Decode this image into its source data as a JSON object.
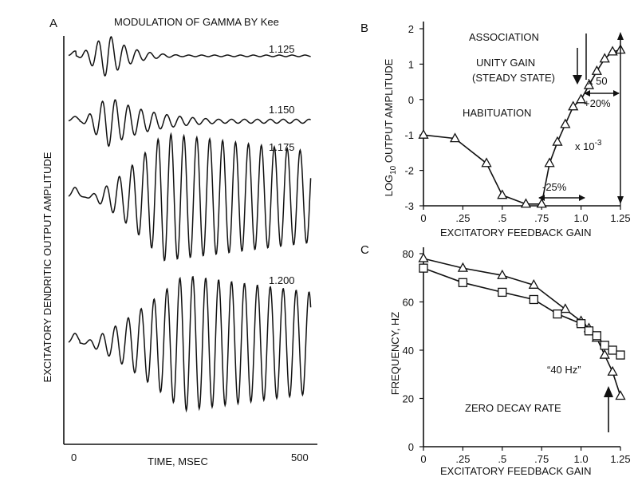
{
  "colors": {
    "ink": "#111111",
    "background": "#ffffff"
  },
  "panelA": {
    "panel_label": "A",
    "title": "MODULATION OF GAMMA BY Kee",
    "ylabel": "EXCITATORY DENDRITIC OUTPUT AMPLITUDE",
    "xlabel": "TIME, MSEC",
    "x_tick_start": "0",
    "x_tick_end": "500",
    "traces": [
      {
        "label": "1.125"
      },
      {
        "label": "1.150"
      },
      {
        "label": "1.175"
      },
      {
        "label": "1.200"
      }
    ]
  },
  "panelB": {
    "panel_label": "B",
    "annotations": {
      "association": "ASSOCIATION",
      "unity1": "UNITY GAIN",
      "unity2": "(STEADY STATE)",
      "habituation": "HABITUATION",
      "x50": "x 50",
      "plus20": "+20%",
      "minus25": "-25%",
      "x10_base": "x 10",
      "x10_exp": "-3"
    }
  },
  "panelC": {
    "panel_label": "C",
    "annotations": {
      "forty": "“40 Hz”",
      "zero_decay": "ZERO DECAY RATE"
    }
  },
  "chart_data": [
    {
      "type": "line",
      "panel": "A",
      "title": "MODULATION OF GAMMA BY Kee",
      "xlabel": "TIME, MSEC",
      "ylabel": "EXCITATORY DENDRITIC OUTPUT AMPLITUDE",
      "xlim": [
        0,
        500
      ],
      "x_ticks": [
        "0",
        "500"
      ],
      "series": [
        {
          "name": "1.125",
          "description": "brief burst of oscillation decaying to baseline"
        },
        {
          "name": "1.150",
          "description": "burst decaying slowly, small residual oscillation"
        },
        {
          "name": "1.175",
          "description": "large sustained oscillation, slowly declining"
        },
        {
          "name": "1.200",
          "description": "large sustained oscillation, growing"
        }
      ]
    },
    {
      "type": "line",
      "panel": "B",
      "xlabel": "EXCITATORY FEEDBACK GAIN",
      "ylabel": "LOG10 OUTPUT AMPLITUDE",
      "xlim": [
        0,
        1.25
      ],
      "ylim": [
        -3,
        2
      ],
      "x_ticks": [
        "0",
        ".25",
        ".5",
        ".75",
        "1.0",
        "1.25"
      ],
      "y_ticks": [
        "-3",
        "-2",
        "-1",
        "0",
        "1",
        "2"
      ],
      "series": [
        {
          "marker": "triangle",
          "x": [
            0,
            0.2,
            0.4,
            0.5,
            0.65,
            0.75,
            0.8,
            0.85,
            0.9,
            0.95,
            1.0,
            1.05,
            1.1,
            1.15,
            1.2,
            1.25
          ],
          "y": [
            -1.0,
            -1.1,
            -1.8,
            -2.7,
            -2.95,
            -2.95,
            -1.8,
            -1.2,
            -0.7,
            -0.2,
            0.0,
            0.4,
            0.8,
            1.15,
            1.35,
            1.4
          ]
        }
      ]
    },
    {
      "type": "line",
      "panel": "C",
      "xlabel": "EXCITATORY FEEDBACK GAIN",
      "ylabel": "FREQUENCY, HZ",
      "xlim": [
        0,
        1.25
      ],
      "ylim": [
        0,
        80
      ],
      "x_ticks": [
        "0",
        ".25",
        ".5",
        ".75",
        "1.0",
        "1.25"
      ],
      "y_ticks": [
        "0",
        "20",
        "40",
        "60",
        "80"
      ],
      "series": [
        {
          "marker": "triangle",
          "x": [
            0,
            0.25,
            0.5,
            0.7,
            0.9,
            1.0,
            1.05,
            1.1,
            1.15,
            1.2,
            1.25
          ],
          "y": [
            78,
            74,
            71,
            67,
            57,
            52,
            49,
            45,
            38,
            31,
            21
          ]
        },
        {
          "marker": "square",
          "x": [
            0,
            0.25,
            0.5,
            0.7,
            0.85,
            1.0,
            1.05,
            1.1,
            1.15,
            1.2,
            1.25
          ],
          "y": [
            74,
            68,
            64,
            61,
            55,
            51,
            48,
            46,
            42,
            40,
            38
          ]
        }
      ]
    }
  ]
}
